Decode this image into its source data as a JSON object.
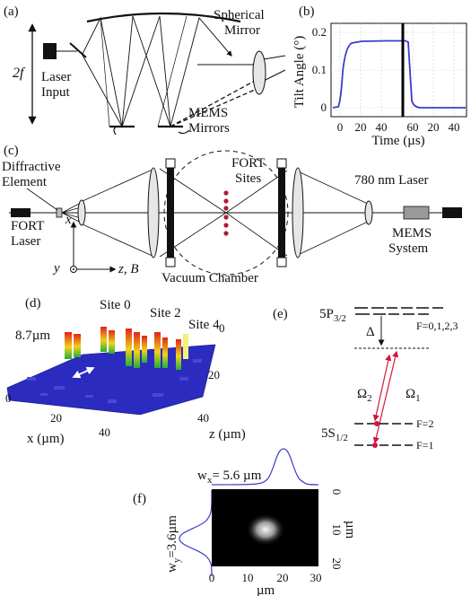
{
  "panel_a": {
    "label": "(a)",
    "two_f": "2f",
    "laser_input": [
      "Laser",
      "Input"
    ],
    "spherical_mirror": [
      "Spherical",
      "Mirror"
    ],
    "mems_mirrors": [
      "MEMS",
      "Mirrors"
    ]
  },
  "panel_b": {
    "label": "(b)",
    "ylabel": "Tilt Angle (°)",
    "xlabel": "Time (µs)",
    "y_ticks": [
      "0",
      "0.1",
      "0.2"
    ],
    "x_ticks": [
      "0",
      "20",
      "40",
      "60",
      "20",
      "40"
    ],
    "colors": {
      "trace": "#3c3cc8",
      "marker": "#000000"
    }
  },
  "panel_c": {
    "label": "(c)",
    "diffractive_element": [
      "Diffractive",
      "Element"
    ],
    "fort_laser": [
      "FORT",
      "Laser"
    ],
    "fort_sites": [
      "FORT",
      "Sites"
    ],
    "laser_780": "780 nm Laser",
    "mems_system": [
      "MEMS",
      "System"
    ],
    "vacuum_chamber": "Vacuum Chamber",
    "axis_x": "x",
    "axis_y": "y",
    "axis_zb": "z, B",
    "colors": {
      "sites": "#b01a3a"
    }
  },
  "panel_d": {
    "label": "(d)",
    "site0": "Site 0",
    "site2": "Site 2",
    "site4": "Site 4",
    "size": "8.7µm",
    "x_axis_label": "x (µm)",
    "z_axis_label": "z (µm)",
    "x_ticks": [
      "0",
      "20",
      "40"
    ],
    "z_ticks": [
      "0",
      "20",
      "40"
    ]
  },
  "panel_e": {
    "label": "(e)",
    "upper_state": "5P",
    "upper_sub": "3/2",
    "upper_f": "F=0,1,2,3",
    "delta": "Δ",
    "omega2": "Ω",
    "omega2_sub": "2",
    "omega1": "Ω",
    "omega1_sub": "1",
    "lower_state": "5S",
    "lower_sub": "1/2",
    "f2": "F=2",
    "f1": "F=1",
    "colors": {
      "beam": "#d4143c"
    }
  },
  "panel_f": {
    "label": "(f)",
    "wx": "w",
    "wx_sub": "x",
    "wx_value": "= 5.6 µm",
    "wy": "w",
    "wy_sub": "y",
    "wy_value": "=3.6µm",
    "x_ticks": [
      "0",
      "10",
      "20",
      "30"
    ],
    "x_unit": "µm",
    "y_ticks": [
      "0",
      "10",
      "20"
    ],
    "y_unit": "µm",
    "colors": {
      "profile": "#3c3cc8"
    }
  }
}
